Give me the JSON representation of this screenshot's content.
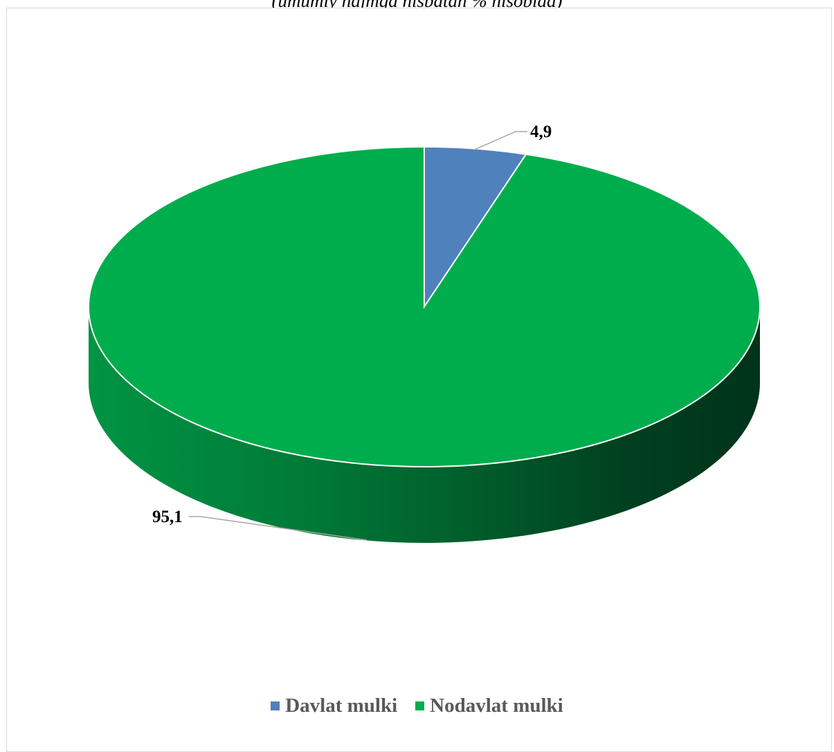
{
  "chart_data": {
    "type": "pie",
    "title": "",
    "subtitle": "(umumiy hajmga nisbatan % hisobida)",
    "style": "3d",
    "unit": "%",
    "categories": [
      "Davlat mulki",
      "Nodavlat mulki"
    ],
    "values": [
      4.9,
      95.1
    ],
    "data_labels": [
      "4,9",
      "95,1"
    ],
    "colors": [
      "#4f81bd",
      "#00ad4d"
    ],
    "legend": {
      "position": "bottom",
      "entries": [
        "Davlat mulki",
        "Nodavlat mulki"
      ]
    }
  }
}
